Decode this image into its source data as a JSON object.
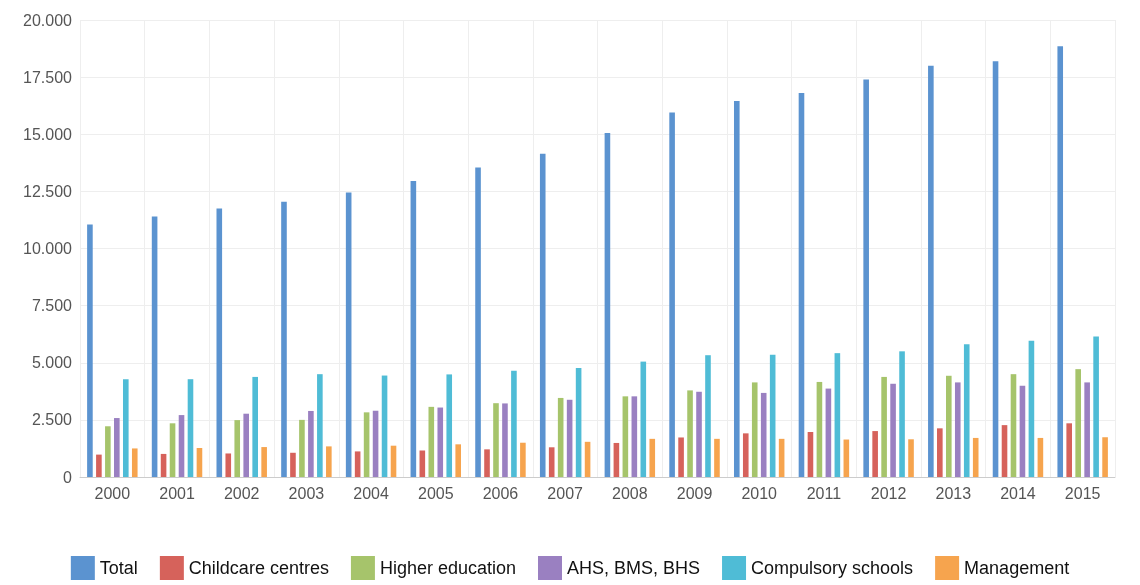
{
  "chart_data": {
    "type": "bar",
    "categories": [
      "2000",
      "2001",
      "2002",
      "2003",
      "2004",
      "2005",
      "2006",
      "2007",
      "2008",
      "2009",
      "2010",
      "2011",
      "2012",
      "2013",
      "2014",
      "2015"
    ],
    "series": [
      {
        "name": "Total",
        "color": "#5b93d0",
        "values": [
          11050,
          11400,
          11750,
          12050,
          12450,
          12950,
          13550,
          14150,
          15050,
          15950,
          16450,
          16800,
          17400,
          18000,
          18200,
          18850
        ]
      },
      {
        "name": "Childcare centres",
        "color": "#d6625b",
        "values": [
          980,
          1010,
          1030,
          1060,
          1120,
          1160,
          1210,
          1300,
          1490,
          1730,
          1910,
          1970,
          2010,
          2130,
          2270,
          2350
        ]
      },
      {
        "name": "Higher education",
        "color": "#a6c46b",
        "values": [
          2220,
          2350,
          2490,
          2500,
          2830,
          3070,
          3230,
          3460,
          3530,
          3790,
          4140,
          4160,
          4380,
          4430,
          4500,
          4720
        ]
      },
      {
        "name": "AHS, BMS, BHS",
        "color": "#9a80c1",
        "values": [
          2580,
          2710,
          2770,
          2890,
          2900,
          3040,
          3220,
          3380,
          3530,
          3730,
          3680,
          3870,
          4080,
          4140,
          3990,
          4140
        ]
      },
      {
        "name": "Compulsory schools",
        "color": "#4fbcd6",
        "values": [
          4280,
          4280,
          4380,
          4500,
          4440,
          4490,
          4650,
          4770,
          5050,
          5330,
          5350,
          5420,
          5500,
          5810,
          5960,
          6150
        ]
      },
      {
        "name": "Management",
        "color": "#f6a44e",
        "values": [
          1250,
          1270,
          1310,
          1340,
          1370,
          1430,
          1500,
          1540,
          1670,
          1670,
          1670,
          1640,
          1650,
          1710,
          1710,
          1740
        ]
      }
    ],
    "ylim": [
      0,
      20000
    ],
    "yticks": [
      {
        "value": 0,
        "label": "0"
      },
      {
        "value": 2500,
        "label": "2.500"
      },
      {
        "value": 5000,
        "label": "5.000"
      },
      {
        "value": 7500,
        "label": "7.500"
      },
      {
        "value": 10000,
        "label": "10.000"
      },
      {
        "value": 12500,
        "label": "12.500"
      },
      {
        "value": 15000,
        "label": "15.000"
      },
      {
        "value": 17500,
        "label": "17.500"
      },
      {
        "value": 20000,
        "label": "20.000"
      }
    ],
    "grid": true,
    "legend": "bottom"
  }
}
